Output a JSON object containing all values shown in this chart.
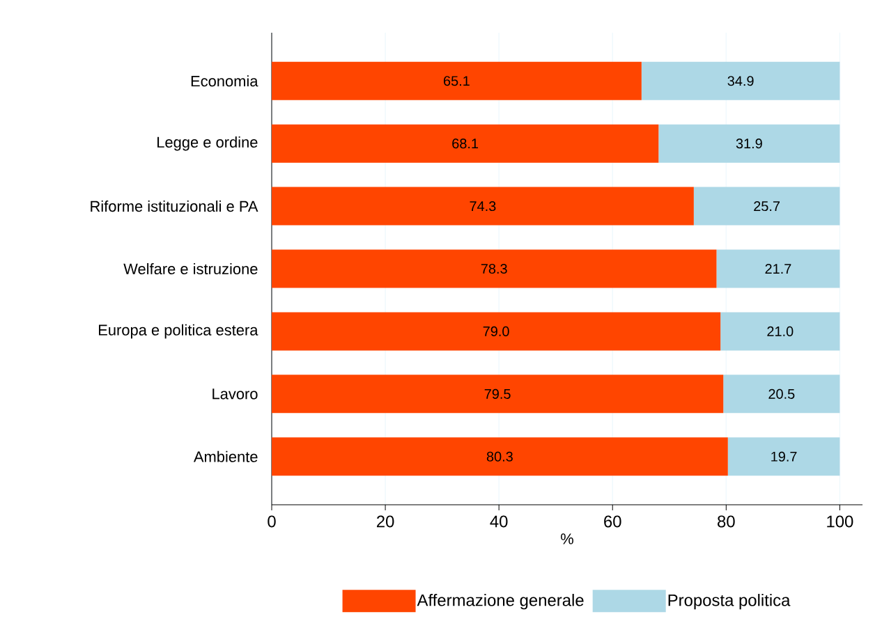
{
  "chart_data": {
    "type": "bar",
    "orientation": "horizontal",
    "stacked": true,
    "xlabel": "%",
    "categories": [
      "Economia",
      "Legge e ordine",
      "Riforme istituzionali e PA",
      "Welfare e istruzione",
      "Europa e politica estera",
      "Lavoro",
      "Ambiente"
    ],
    "series": [
      {
        "name": "Affermazione generale",
        "color": "#ff4500",
        "values": [
          65.1,
          68.1,
          74.3,
          78.3,
          79.0,
          79.5,
          80.3
        ],
        "value_labels": [
          "65.1",
          "68.1",
          "74.3",
          "78.3",
          "79.0",
          "79.5",
          "80.3"
        ]
      },
      {
        "name": "Proposta politica",
        "color": "#add8e6",
        "values": [
          34.9,
          31.9,
          25.7,
          21.7,
          21.0,
          20.5,
          19.7
        ],
        "value_labels": [
          "34.9",
          "31.9",
          "25.7",
          "21.7",
          "21.0",
          "20.5",
          "19.7"
        ]
      }
    ],
    "xlim": [
      0,
      104
    ],
    "xticks": [
      0,
      20,
      40,
      60,
      80,
      100
    ],
    "grid": "x",
    "legend": "bottom"
  }
}
